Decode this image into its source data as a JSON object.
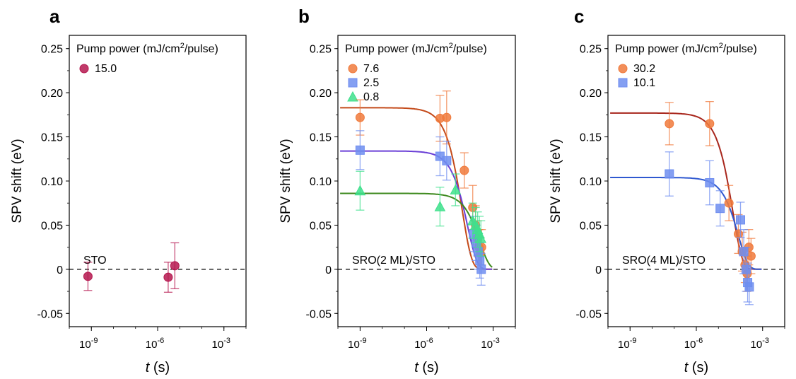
{
  "chart_data": [
    {
      "type": "scatter",
      "panel_label": "a",
      "xlabel_var": "t",
      "xlabel_unit": " (s)",
      "ylabel": "SPV shift (eV)",
      "x_scale": "log",
      "xlim": [
        1e-10,
        0.01
      ],
      "ylim": [
        -0.065,
        0.265
      ],
      "x_ticks": [
        1e-09,
        1e-06,
        0.001
      ],
      "x_tick_labels": [
        "10-9",
        "10-6",
        "10-3"
      ],
      "y_ticks": [
        -0.05,
        0,
        0.05,
        0.1,
        0.15,
        0.2,
        0.25
      ],
      "y_tick_labels": [
        "-0.05",
        "0",
        "0.05",
        "0.10",
        "0.15",
        "0.20",
        "0.25"
      ],
      "legend_title": "Pump power (mJ/cm2/pulse)",
      "annotation": "STO",
      "zero_line": true,
      "series": [
        {
          "name": "15.0",
          "marker": "circle",
          "color": "#b5174f",
          "points": [
            {
              "x": 7e-10,
              "y": -0.008,
              "yerr": 0.016
            },
            {
              "x": 3e-06,
              "y": -0.009,
              "yerr": 0.017
            },
            {
              "x": 6e-06,
              "y": 0.004,
              "yerr": 0.026
            }
          ]
        }
      ],
      "fits": []
    },
    {
      "type": "scatter",
      "panel_label": "b",
      "xlabel_var": "t",
      "xlabel_unit": " (s)",
      "ylabel": "SPV shift (eV)",
      "x_scale": "log",
      "xlim": [
        1e-10,
        0.01
      ],
      "ylim": [
        -0.065,
        0.265
      ],
      "x_ticks": [
        1e-09,
        1e-06,
        0.001
      ],
      "x_tick_labels": [
        "10-9",
        "10-6",
        "10-3"
      ],
      "y_ticks": [
        -0.05,
        0,
        0.05,
        0.1,
        0.15,
        0.2,
        0.25
      ],
      "y_tick_labels": [
        "-0.05",
        "0",
        "0.05",
        "0.10",
        "0.15",
        "0.20",
        "0.25"
      ],
      "legend_title": "Pump power (mJ/cm2/pulse)",
      "annotation": "SRO(2 ML)/STO",
      "zero_line": true,
      "series": [
        {
          "name": "7.6",
          "marker": "circle",
          "color": "#f07a3c",
          "points": [
            {
              "x": 1e-09,
              "y": 0.172,
              "yerr": 0.02
            },
            {
              "x": 4e-06,
              "y": 0.171,
              "yerr": 0.026
            },
            {
              "x": 8e-06,
              "y": 0.172,
              "yerr": 0.03
            },
            {
              "x": 5e-05,
              "y": 0.112,
              "yerr": 0.02
            },
            {
              "x": 0.00012,
              "y": 0.07,
              "yerr": 0.025
            },
            {
              "x": 0.00016,
              "y": 0.05,
              "yerr": 0.022
            },
            {
              "x": 0.0002,
              "y": 0.035,
              "yerr": 0.02
            },
            {
              "x": 0.00023,
              "y": 0.025,
              "yerr": 0.02
            },
            {
              "x": 0.00026,
              "y": 0.018,
              "yerr": 0.018
            },
            {
              "x": 0.0003,
              "y": 0.025,
              "yerr": 0.02
            }
          ]
        },
        {
          "name": "2.5",
          "marker": "square",
          "color": "#6f8ef0",
          "points": [
            {
              "x": 1e-09,
              "y": 0.135,
              "yerr": 0.022
            },
            {
              "x": 4e-06,
              "y": 0.128,
              "yerr": 0.022
            },
            {
              "x": 8e-06,
              "y": 0.123,
              "yerr": 0.022
            },
            {
              "x": 0.00013,
              "y": 0.04,
              "yerr": 0.02
            },
            {
              "x": 0.00017,
              "y": 0.03,
              "yerr": 0.02
            },
            {
              "x": 0.00021,
              "y": 0.02,
              "yerr": 0.02
            },
            {
              "x": 0.00025,
              "y": 0.01,
              "yerr": 0.02
            },
            {
              "x": 0.00029,
              "y": 0.0,
              "yerr": 0.018
            }
          ]
        },
        {
          "name": "0.8",
          "marker": "triangle",
          "color": "#3fe08c",
          "points": [
            {
              "x": 1e-09,
              "y": 0.089,
              "yerr": 0.022
            },
            {
              "x": 4e-06,
              "y": 0.071,
              "yerr": 0.022
            },
            {
              "x": 2e-05,
              "y": 0.09,
              "yerr": 0.018
            },
            {
              "x": 0.00012,
              "y": 0.055,
              "yerr": 0.02
            },
            {
              "x": 0.00016,
              "y": 0.05,
              "yerr": 0.02
            },
            {
              "x": 0.0002,
              "y": 0.045,
              "yerr": 0.02
            },
            {
              "x": 0.00024,
              "y": 0.04,
              "yerr": 0.02
            },
            {
              "x": 0.00028,
              "y": 0.035,
              "yerr": 0.02
            }
          ]
        }
      ],
      "fits": [
        {
          "color": "#c44a1a",
          "amplitude": 0.183,
          "tau": 4e-05
        },
        {
          "color": "#6a3fd6",
          "amplitude": 0.134,
          "tau": 7e-05
        },
        {
          "color": "#3e8a1e",
          "amplitude": 0.086,
          "tau": 0.00025
        }
      ]
    },
    {
      "type": "scatter",
      "panel_label": "c",
      "xlabel_var": "t",
      "xlabel_unit": " (s)",
      "ylabel": "SPV shift (eV)",
      "x_scale": "log",
      "xlim": [
        1e-10,
        0.01
      ],
      "ylim": [
        -0.065,
        0.265
      ],
      "x_ticks": [
        1e-09,
        1e-06,
        0.001
      ],
      "x_tick_labels": [
        "10-9",
        "10-6",
        "10-3"
      ],
      "y_ticks": [
        -0.05,
        0,
        0.05,
        0.1,
        0.15,
        0.2,
        0.25
      ],
      "y_tick_labels": [
        "-0.05",
        "0",
        "0.05",
        "0.10",
        "0.15",
        "0.20",
        "0.25"
      ],
      "legend_title": "Pump power (mJ/cm2/pulse)",
      "annotation": "SRO(4 ML)/STO",
      "zero_line": true,
      "series": [
        {
          "name": "30.2",
          "marker": "circle",
          "color": "#f07a3c",
          "points": [
            {
              "x": 6e-08,
              "y": 0.165,
              "yerr": 0.024
            },
            {
              "x": 4e-06,
              "y": 0.165,
              "yerr": 0.025
            },
            {
              "x": 3e-05,
              "y": 0.075,
              "yerr": 0.02
            },
            {
              "x": 8e-05,
              "y": 0.04,
              "yerr": 0.022
            },
            {
              "x": 0.00012,
              "y": 0.02,
              "yerr": 0.022
            },
            {
              "x": 0.00016,
              "y": 0.005,
              "yerr": 0.02
            },
            {
              "x": 0.0002,
              "y": -0.005,
              "yerr": 0.02
            },
            {
              "x": 0.00024,
              "y": 0.025,
              "yerr": 0.02
            },
            {
              "x": 0.0003,
              "y": 0.015,
              "yerr": 0.02
            }
          ]
        },
        {
          "name": "10.1",
          "marker": "square",
          "color": "#6f8ef0",
          "points": [
            {
              "x": 6e-08,
              "y": 0.108,
              "yerr": 0.025
            },
            {
              "x": 4e-06,
              "y": 0.098,
              "yerr": 0.025
            },
            {
              "x": 1.2e-05,
              "y": 0.069,
              "yerr": 0.02
            },
            {
              "x": 0.0001,
              "y": 0.056,
              "yerr": 0.02
            },
            {
              "x": 0.00014,
              "y": 0.02,
              "yerr": 0.025
            },
            {
              "x": 0.00018,
              "y": 0.0,
              "yerr": 0.025
            },
            {
              "x": 0.00021,
              "y": -0.015,
              "yerr": 0.022
            },
            {
              "x": 0.00025,
              "y": -0.02,
              "yerr": 0.02
            }
          ]
        }
      ],
      "fits": [
        {
          "color": "#a8261c",
          "amplitude": 0.177,
          "tau": 4.5e-05
        },
        {
          "color": "#2f58d0",
          "amplitude": 0.104,
          "tau": 8e-05
        }
      ]
    }
  ]
}
